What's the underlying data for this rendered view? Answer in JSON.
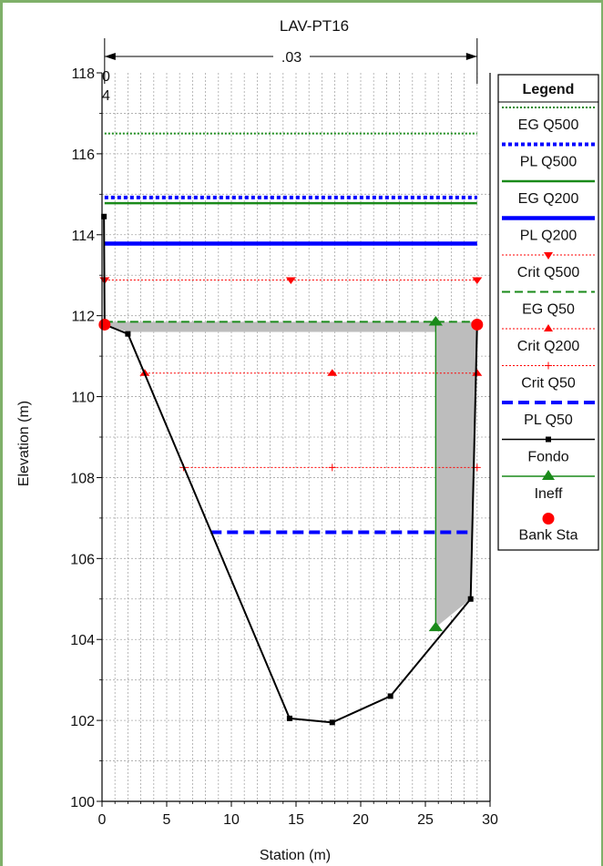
{
  "chart_data": {
    "type": "line",
    "title": "LAV-PT16",
    "xlabel": "Station (m)",
    "ylabel": "Elevation (m)",
    "xlim": [
      0,
      30
    ],
    "ylim": [
      100,
      118
    ],
    "x_ticks": [
      "0",
      "5",
      "10",
      "15",
      "20",
      "25",
      "30"
    ],
    "y_ticks": [
      "100",
      "102",
      "104",
      "106",
      "108",
      "110",
      "112",
      "114",
      "116",
      "118"
    ],
    "grid": true,
    "legend_position": "right",
    "manning_label": ".03",
    "manning_span": [
      0.2,
      29.0
    ],
    "corner_label_top": "0",
    "corner_label_bottom": "4",
    "legend_title": "Legend",
    "legend_items": [
      "EG Q500",
      "PL Q500",
      "EG Q200",
      "PL Q200",
      "Crit Q500",
      "EG Q50",
      "Crit Q200",
      "Crit Q50",
      "PL Q50",
      "Fondo",
      "Ineff",
      "Bank Sta"
    ],
    "series": [
      {
        "name": "EG Q500",
        "color": "#1a8a1a",
        "x": [
          0.2,
          29.0
        ],
        "y": [
          116.5,
          116.5
        ]
      },
      {
        "name": "PL Q500",
        "color": "#0000ff",
        "x": [
          0.2,
          29.0
        ],
        "y": [
          114.92,
          114.92
        ]
      },
      {
        "name": "EG Q200",
        "color": "#1a8a1a",
        "x": [
          0.2,
          29.0
        ],
        "y": [
          114.78,
          114.78
        ]
      },
      {
        "name": "PL Q200",
        "color": "#0000ff",
        "x": [
          0.2,
          29.0
        ],
        "y": [
          113.78,
          113.78
        ]
      },
      {
        "name": "Crit Q500",
        "color": "#ff0000",
        "x": [
          0.2,
          29.0
        ],
        "y": [
          112.88,
          112.88
        ]
      },
      {
        "name": "EG Q50",
        "color": "#1a8a1a",
        "x": [
          0.2,
          29.0
        ],
        "y": [
          111.85,
          111.85
        ]
      },
      {
        "name": "Crit Q200",
        "color": "#ff0000",
        "x": [
          3.3,
          29.0
        ],
        "y": [
          110.58,
          110.58
        ]
      },
      {
        "name": "Crit Q50",
        "color": "#ff0000",
        "x": [
          6.3,
          29.0
        ],
        "y": [
          108.25,
          108.25
        ]
      },
      {
        "name": "PL Q50",
        "color": "#0000ff",
        "x": [
          8.4,
          28.5
        ],
        "y": [
          106.65,
          106.65
        ]
      },
      {
        "name": "Fondo",
        "color": "#000000",
        "x": [
          0.15,
          0.2,
          2.0,
          14.5,
          17.8,
          22.3,
          28.5,
          29.0
        ],
        "y": [
          114.45,
          111.78,
          111.55,
          102.05,
          101.95,
          102.6,
          105.0,
          111.78
        ]
      },
      {
        "name": "Ineff",
        "color": "#1a8a1a",
        "x": [
          25.8,
          25.8
        ],
        "y": [
          111.85,
          104.3
        ]
      },
      {
        "name": "Bank Sta",
        "color": "#ff0000",
        "x": [
          0.2,
          29.0
        ],
        "y": [
          111.78,
          111.78
        ]
      }
    ],
    "ineffective_area": {
      "x": [
        0.2,
        29.0,
        29.0,
        28.5,
        25.8,
        25.8,
        2.0,
        0.2
      ],
      "y": [
        111.85,
        111.85,
        111.78,
        105.0,
        104.3,
        111.6,
        111.6,
        111.78
      ]
    }
  }
}
